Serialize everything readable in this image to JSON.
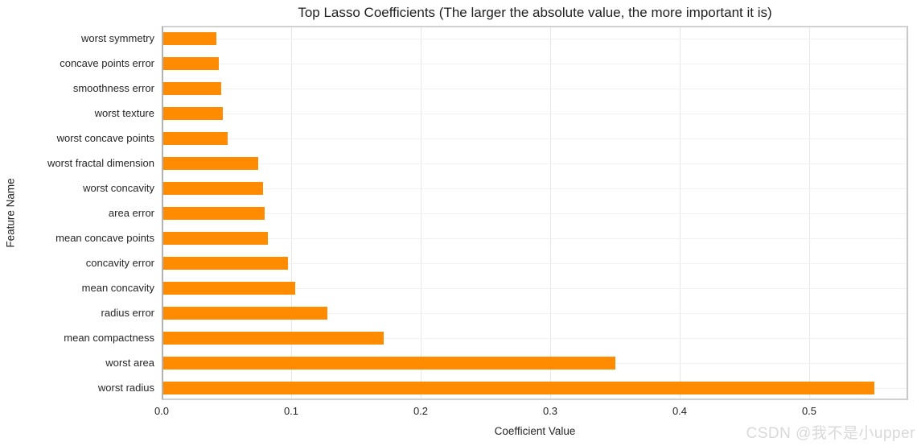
{
  "watermark": "CSDN @我不是小upper",
  "colors": {
    "bar": "#ff8c00",
    "vgrid": "#e7e7e7",
    "hgrid": "#f1f1f1",
    "spine": "#c8c8c8",
    "text": "#262626",
    "watermark": "#d9d9d9"
  },
  "chart_data": {
    "type": "bar",
    "orientation": "horizontal",
    "title": "Top Lasso Coefficients (The larger the absolute value, the more important it is)",
    "xlabel": "Coefficient Value",
    "ylabel": "Feature Name",
    "grid": true,
    "legend": false,
    "categories": [
      "worst symmetry",
      "concave points error",
      "smoothness error",
      "worst texture",
      "worst concave points",
      "worst fractal dimension",
      "worst concavity",
      "area error",
      "mean concave points",
      "concavity error",
      "mean concavity",
      "radius error",
      "mean compactness",
      "worst area",
      "worst radius"
    ],
    "values": [
      0.041,
      0.043,
      0.045,
      0.046,
      0.05,
      0.073,
      0.077,
      0.078,
      0.081,
      0.096,
      0.102,
      0.127,
      0.17,
      0.349,
      0.549
    ],
    "xlim": [
      0,
      0.5765
    ],
    "xticks": [
      "0.0",
      "0.1",
      "0.2",
      "0.3",
      "0.4",
      "0.5"
    ],
    "bar_color": "#ff8c00"
  }
}
